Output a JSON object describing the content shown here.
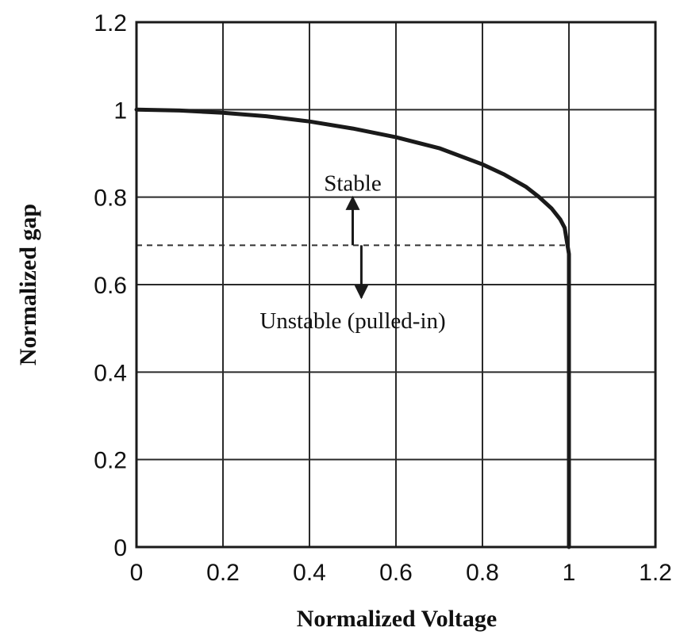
{
  "chart_data": {
    "type": "line",
    "title": "",
    "xlabel": "Normalized Voltage",
    "ylabel": "Normalized gap",
    "xlim": [
      0,
      1.2
    ],
    "ylim": [
      0,
      1.2
    ],
    "xticks": [
      "0",
      "0.2",
      "0.4",
      "0.6",
      "0.8",
      "1",
      "1.2"
    ],
    "yticks": [
      "0",
      "0.2",
      "0.4",
      "0.6",
      "0.8",
      "1",
      "1.2"
    ],
    "grid": true,
    "series": [
      {
        "x": [
          0,
          0.1,
          0.2,
          0.3,
          0.4,
          0.5,
          0.6,
          0.7,
          0.8,
          0.85,
          0.9,
          0.93,
          0.96,
          0.98,
          0.99,
          1.0,
          1.0
        ],
        "y": [
          1.0,
          0.998,
          0.993,
          0.985,
          0.973,
          0.957,
          0.937,
          0.912,
          0.875,
          0.852,
          0.824,
          0.801,
          0.774,
          0.749,
          0.73,
          0.67,
          0.0
        ],
        "color": "#1a1a1a"
      }
    ],
    "reference_line": {
      "y": 0.69,
      "style": "dashed"
    },
    "annotations": [
      {
        "text": "Stable",
        "x": 0.5,
        "y": 0.815
      },
      {
        "text": "Unstable (pulled-in)",
        "x": 0.5,
        "y": 0.5
      }
    ],
    "arrows": [
      {
        "x": 0.5,
        "from": 0.69,
        "to": 0.8
      },
      {
        "x": 0.52,
        "from": 0.69,
        "to": 0.57
      }
    ]
  }
}
